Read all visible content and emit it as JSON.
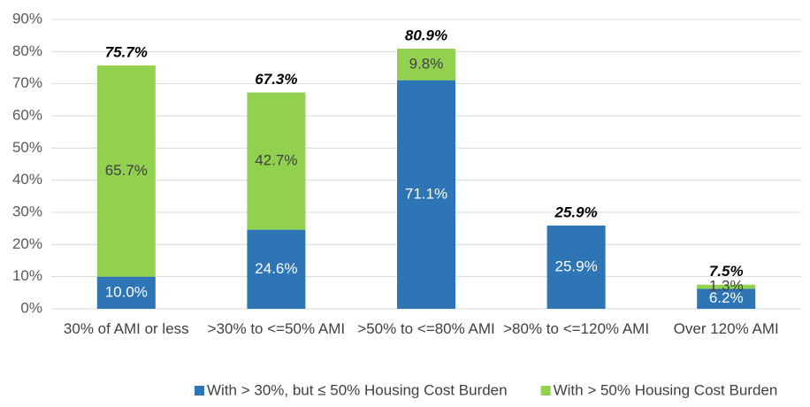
{
  "chart_data": {
    "type": "stacked_bar",
    "categories": [
      "30% of AMI or less",
      ">30% to <=50% AMI",
      ">50% to <=80% AMI",
      ">80% to <=120% AMI",
      "Over 120% AMI"
    ],
    "series": [
      {
        "name": "With > 30%, but ≤ 50% Housing Cost Burden",
        "color": "#2e75b6",
        "values": [
          10.0,
          24.6,
          71.1,
          25.9,
          6.2
        ],
        "value_labels": [
          "10.0%",
          "24.6%",
          "71.1%",
          "25.9%",
          "6.2%"
        ]
      },
      {
        "name": "With > 50% Housing Cost Burden",
        "color": "#92d050",
        "values": [
          65.7,
          42.7,
          9.8,
          null,
          1.3
        ],
        "value_labels": [
          "65.7%",
          "42.7%",
          "9.8%",
          null,
          "1.3%"
        ]
      }
    ],
    "totals": [
      75.7,
      67.3,
      80.9,
      25.9,
      7.5
    ],
    "total_labels": [
      "75.7%",
      "67.3%",
      "80.9%",
      "25.9%",
      "7.5%"
    ],
    "ylim": [
      0,
      90
    ],
    "yticks": [
      {
        "value": 0,
        "label": "0%"
      },
      {
        "value": 10,
        "label": "10%"
      },
      {
        "value": 20,
        "label": "20%"
      },
      {
        "value": 30,
        "label": "30%"
      },
      {
        "value": 40,
        "label": "40%"
      },
      {
        "value": 50,
        "label": "50%"
      },
      {
        "value": 60,
        "label": "60%"
      },
      {
        "value": 70,
        "label": "70%"
      },
      {
        "value": 80,
        "label": "80%"
      },
      {
        "value": 90,
        "label": "90%"
      }
    ],
    "grid": true,
    "legend": "bottom"
  }
}
